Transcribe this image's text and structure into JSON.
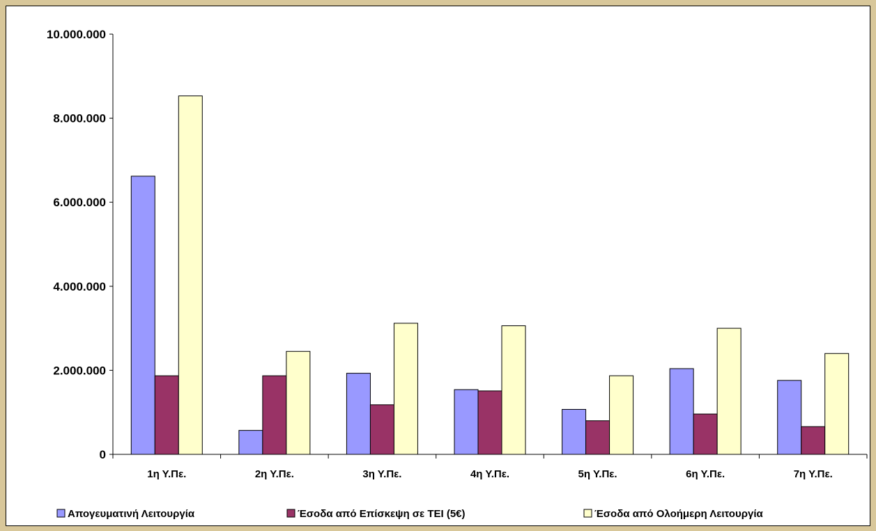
{
  "chart_data": {
    "type": "bar",
    "categories": [
      "1η Υ.Πε.",
      "2η Υ.Πε.",
      "3η Υ.Πε.",
      "4η Υ.Πε.",
      "5η Υ.Πε.",
      "6η Υ.Πε.",
      "7η Υ.Πε."
    ],
    "ylim": [
      0,
      10000000
    ],
    "yticks": [
      0,
      2000000,
      4000000,
      6000000,
      8000000,
      10000000
    ],
    "ytick_labels": [
      "0",
      "2.000.000",
      "4.000.000",
      "6.000.000",
      "8.000.000",
      "10.000.000"
    ],
    "grid": false,
    "legend_position": "bottom",
    "series": [
      {
        "name": "Απογευματινή Λειτουργία",
        "color": "#9999ff",
        "values": [
          6620000,
          570000,
          1930000,
          1540000,
          1070000,
          2040000,
          1760000
        ]
      },
      {
        "name": "Έσοδα από Επίσκεψη σε ΤΕΙ (5€)",
        "color": "#993366",
        "values": [
          1870000,
          1870000,
          1180000,
          1510000,
          800000,
          960000,
          660000
        ]
      },
      {
        "name": "Έσοδα από Ολοήμερη Λειτουργία",
        "color": "#ffffcc",
        "values": [
          8530000,
          2450000,
          3120000,
          3060000,
          1870000,
          3000000,
          2400000
        ]
      }
    ]
  }
}
